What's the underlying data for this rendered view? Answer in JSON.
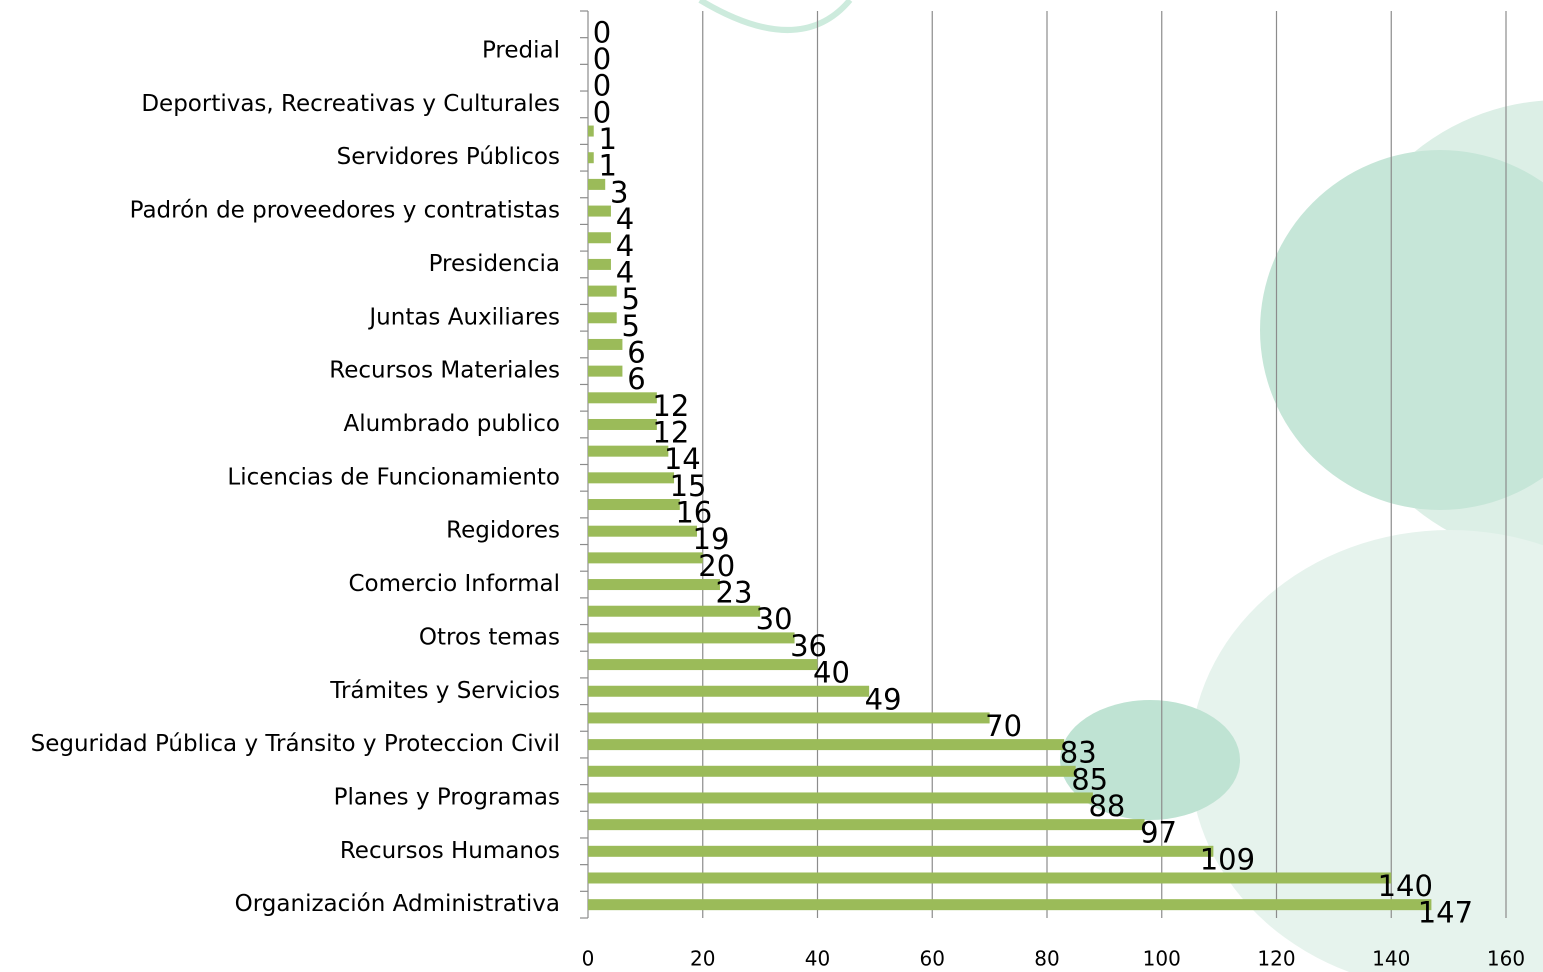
{
  "chart_data": {
    "type": "hbar",
    "categories": [
      null,
      "Predial",
      null,
      "Deportivas, Recreativas y Culturales",
      null,
      "Servidores Públicos",
      null,
      "Padrón de proveedores y contratistas",
      null,
      "Presidencia",
      null,
      "Juntas Auxiliares",
      null,
      "Recursos Materiales",
      null,
      "Alumbrado publico",
      null,
      "Licencias de Funcionamiento",
      null,
      "Regidores",
      null,
      "Comercio Informal",
      null,
      "Otros temas",
      null,
      "Trámites y Servicios",
      null,
      "Seguridad Pública y Tránsito y Proteccion Civil",
      null,
      "Planes y Programas",
      null,
      "Recursos Humanos",
      null,
      "Organización Administrativa"
    ],
    "values": [
      0,
      0,
      0,
      0,
      1,
      1,
      3,
      4,
      4,
      4,
      5,
      5,
      6,
      6,
      12,
      12,
      14,
      15,
      16,
      19,
      20,
      23,
      30,
      36,
      40,
      49,
      70,
      83,
      85,
      88,
      97,
      109,
      140,
      147
    ],
    "color": "#9bbb59",
    "xlim": [
      0,
      160
    ],
    "xticks": [
      0,
      20,
      40,
      60,
      80,
      100,
      120,
      140,
      160
    ],
    "grid": true
  }
}
